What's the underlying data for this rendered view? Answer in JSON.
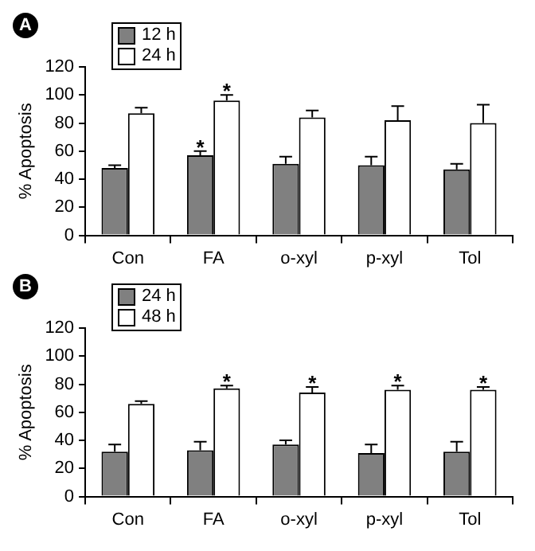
{
  "chart_data": [
    {
      "type": "bar",
      "title": "A",
      "ylabel": "% Apoptosis",
      "categories": [
        "Con",
        "FA",
        "o-xyl",
        "p-xyl",
        "Tol"
      ],
      "series": [
        {
          "name": "12 h",
          "color": "#808080",
          "values": [
            48,
            57,
            51,
            50,
            47
          ],
          "errors": [
            2,
            3,
            5,
            6,
            4
          ]
        },
        {
          "name": "24 h",
          "color": "#ffffff",
          "values": [
            87,
            96,
            84,
            82,
            80
          ],
          "errors": [
            4,
            4,
            5,
            10,
            13
          ]
        }
      ],
      "ylim": [
        0,
        120
      ],
      "yticks": [
        0,
        20,
        40,
        60,
        80,
        100,
        120
      ],
      "grid": false,
      "legend": "top left",
      "annotations": [
        {
          "text": "*",
          "x": "FA",
          "y": 60
        },
        {
          "text": "*",
          "x": "FA",
          "y": 100
        }
      ]
    },
    {
      "type": "bar",
      "title": "B",
      "ylabel": "% Apoptosis",
      "categories": [
        "Con",
        "FA",
        "o-xyl",
        "p-xyl",
        "Tol"
      ],
      "series": [
        {
          "name": "24 h",
          "color": "#808080",
          "values": [
            32,
            33,
            37,
            31,
            32
          ],
          "errors": [
            5,
            6,
            3,
            6,
            7
          ]
        },
        {
          "name": "48 h",
          "color": "#ffffff",
          "values": [
            66,
            77,
            74,
            76,
            76
          ],
          "errors": [
            2,
            2,
            4,
            3,
            2
          ]
        }
      ],
      "ylim": [
        0,
        120
      ],
      "yticks": [
        0,
        20,
        40,
        60,
        80,
        100,
        120
      ],
      "grid": false,
      "legend": "top left",
      "annotations": [
        {
          "text": "*",
          "x": "FA",
          "y": 79
        },
        {
          "text": "*",
          "x": "o-xyl",
          "y": 78
        },
        {
          "text": "*",
          "x": "p-xyl",
          "y": 79
        },
        {
          "text": "*",
          "x": "Tol",
          "y": 78
        }
      ]
    }
  ]
}
